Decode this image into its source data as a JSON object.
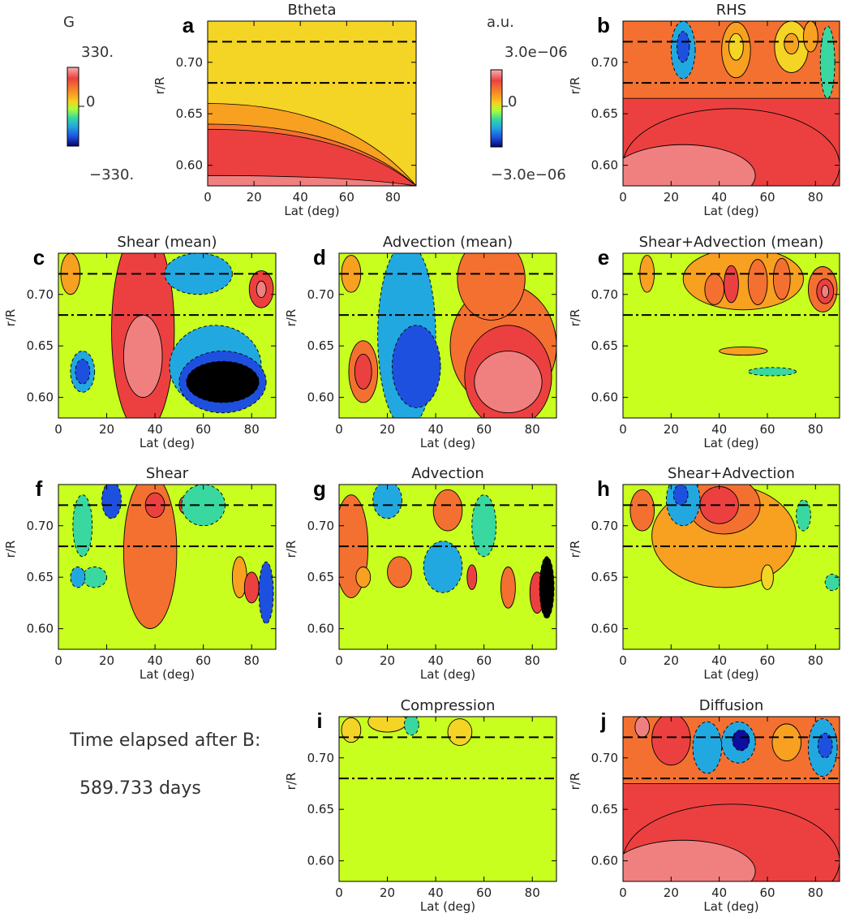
{
  "figure": {
    "info_line1": "Time elapsed after B:",
    "info_line2": "589.733 days"
  },
  "colorbars": [
    {
      "unit": "G",
      "max_label": "330.",
      "zero_label": "0",
      "min_label": "−330."
    },
    {
      "unit": "a.u.",
      "max_label": "3.0e−06",
      "zero_label": "0",
      "min_label": "−3.0e−06"
    }
  ],
  "colors": {
    "plot_background": "#c8ff1e",
    "colormap": [
      "#000000",
      "#0d0da0",
      "#1e50e0",
      "#22a8e0",
      "#38d8a0",
      "#a8ff38",
      "#c8ff1e",
      "#f4d424",
      "#f8a020",
      "#f47030",
      "#ec4040",
      "#f08080",
      "#f8b0b0"
    ],
    "contour_line": "#000000",
    "dashed_line": "#000000"
  },
  "chart_data": [
    {
      "type": "heatmap",
      "panel": "a",
      "title": "Btheta",
      "xlabel": "Lat (deg)",
      "ylabel": "r/R",
      "xlim": [
        0,
        90
      ],
      "ylim": [
        0.58,
        0.74
      ],
      "x_ticks": [
        0,
        20,
        40,
        60,
        80
      ],
      "y_ticks": [
        0.6,
        0.65,
        0.7
      ],
      "reference_lines": [
        {
          "r": 0.72,
          "style": "dashed"
        },
        {
          "r": 0.68,
          "style": "dash-dot"
        }
      ],
      "colorbar": "G",
      "value_range": [
        -330,
        330
      ]
    },
    {
      "type": "heatmap",
      "panel": "b",
      "title": "RHS",
      "xlabel": "Lat (deg)",
      "ylabel": "r/R",
      "xlim": [
        0,
        90
      ],
      "ylim": [
        0.58,
        0.74
      ],
      "x_ticks": [
        0,
        20,
        40,
        60,
        80
      ],
      "y_ticks": [
        0.6,
        0.65,
        0.7
      ],
      "reference_lines": [
        {
          "r": 0.72,
          "style": "dashed"
        },
        {
          "r": 0.68,
          "style": "dash-dot"
        }
      ],
      "colorbar": "a.u.",
      "value_range": [
        -3e-06,
        3e-06
      ]
    },
    {
      "type": "heatmap",
      "panel": "c",
      "title": "Shear (mean)",
      "xlabel": "Lat (deg)",
      "ylabel": "r/R",
      "xlim": [
        0,
        90
      ],
      "ylim": [
        0.58,
        0.74
      ],
      "x_ticks": [
        0,
        20,
        40,
        60,
        80
      ],
      "y_ticks": [
        0.6,
        0.65,
        0.7
      ],
      "reference_lines": [
        {
          "r": 0.72,
          "style": "dashed"
        },
        {
          "r": 0.68,
          "style": "dash-dot"
        }
      ]
    },
    {
      "type": "heatmap",
      "panel": "d",
      "title": "Advection (mean)",
      "xlabel": "Lat (deg)",
      "ylabel": "r/R",
      "xlim": [
        0,
        90
      ],
      "ylim": [
        0.58,
        0.74
      ],
      "x_ticks": [
        0,
        20,
        40,
        60,
        80
      ],
      "y_ticks": [
        0.6,
        0.65,
        0.7
      ],
      "reference_lines": [
        {
          "r": 0.72,
          "style": "dashed"
        },
        {
          "r": 0.68,
          "style": "dash-dot"
        }
      ]
    },
    {
      "type": "heatmap",
      "panel": "e",
      "title": "Shear+Advection (mean)",
      "xlabel": "Lat (deg)",
      "ylabel": "r/R",
      "xlim": [
        0,
        90
      ],
      "ylim": [
        0.58,
        0.74
      ],
      "x_ticks": [
        0,
        20,
        40,
        60,
        80
      ],
      "y_ticks": [
        0.6,
        0.65,
        0.7
      ],
      "reference_lines": [
        {
          "r": 0.72,
          "style": "dashed"
        },
        {
          "r": 0.68,
          "style": "dash-dot"
        }
      ]
    },
    {
      "type": "heatmap",
      "panel": "f",
      "title": "Shear",
      "xlabel": "Lat (deg)",
      "ylabel": "r/R",
      "xlim": [
        0,
        90
      ],
      "ylim": [
        0.58,
        0.74
      ],
      "x_ticks": [
        0,
        20,
        40,
        60,
        80
      ],
      "y_ticks": [
        0.6,
        0.65,
        0.7
      ],
      "reference_lines": [
        {
          "r": 0.72,
          "style": "dashed"
        },
        {
          "r": 0.68,
          "style": "dash-dot"
        }
      ]
    },
    {
      "type": "heatmap",
      "panel": "g",
      "title": "Advection",
      "xlabel": "Lat (deg)",
      "ylabel": "r/R",
      "xlim": [
        0,
        90
      ],
      "ylim": [
        0.58,
        0.74
      ],
      "x_ticks": [
        0,
        20,
        40,
        60,
        80
      ],
      "y_ticks": [
        0.6,
        0.65,
        0.7
      ],
      "reference_lines": [
        {
          "r": 0.72,
          "style": "dashed"
        },
        {
          "r": 0.68,
          "style": "dash-dot"
        }
      ]
    },
    {
      "type": "heatmap",
      "panel": "h",
      "title": "Shear+Advection",
      "xlabel": "Lat (deg)",
      "ylabel": "r/R",
      "xlim": [
        0,
        90
      ],
      "ylim": [
        0.58,
        0.74
      ],
      "x_ticks": [
        0,
        20,
        40,
        60,
        80
      ],
      "y_ticks": [
        0.6,
        0.65,
        0.7
      ],
      "reference_lines": [
        {
          "r": 0.72,
          "style": "dashed"
        },
        {
          "r": 0.68,
          "style": "dash-dot"
        }
      ]
    },
    {
      "type": "heatmap",
      "panel": "i",
      "title": "Compression",
      "xlabel": "Lat (deg)",
      "ylabel": "r/R",
      "xlim": [
        0,
        90
      ],
      "ylim": [
        0.58,
        0.74
      ],
      "x_ticks": [
        0,
        20,
        40,
        60,
        80
      ],
      "y_ticks": [
        0.6,
        0.65,
        0.7
      ],
      "reference_lines": [
        {
          "r": 0.72,
          "style": "dashed"
        },
        {
          "r": 0.68,
          "style": "dash-dot"
        }
      ]
    },
    {
      "type": "heatmap",
      "panel": "j",
      "title": "Diffusion",
      "xlabel": "Lat (deg)",
      "ylabel": "r/R",
      "xlim": [
        0,
        90
      ],
      "ylim": [
        0.58,
        0.74
      ],
      "x_ticks": [
        0,
        20,
        40,
        60,
        80
      ],
      "y_ticks": [
        0.6,
        0.65,
        0.7
      ],
      "reference_lines": [
        {
          "r": 0.72,
          "style": "dashed"
        },
        {
          "r": 0.68,
          "style": "dash-dot"
        }
      ]
    }
  ]
}
